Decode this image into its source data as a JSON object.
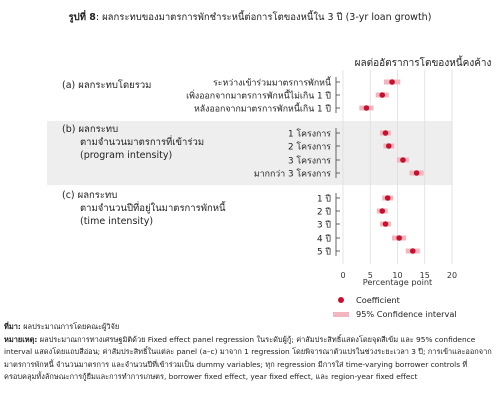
{
  "figure": {
    "number_label": "รูปที่ 8",
    "title": ": ผลกระทบของมาตรการพักชำระหนี้ต่อการโตของหนี้ใน 3 ปี (3-yr loan growth)"
  },
  "chart_data": {
    "type": "scatter",
    "title": "ผลต่ออัตราการโตของหนี้คงค้าง",
    "xlabel": "Percentage point",
    "xlim": [
      0,
      20
    ],
    "xticks": [
      0,
      5,
      10,
      15,
      20
    ],
    "grid": true,
    "legend_position": "bottom-right",
    "panels": [
      {
        "label": "(a)  ผลกระทบโดยรวม",
        "label_lines": [
          "(a)  ผลกระทบโดยรวม"
        ],
        "shaded": false,
        "rows": [
          {
            "label": "ระหว่างเข้าร่วมมาตรการพักหนี้",
            "coef": 9.0,
            "ci": [
              7.5,
              10.5
            ]
          },
          {
            "label": "เพิ่งออกจากมาตรการพักหนี้ไม่เกิน 1 ปี",
            "coef": 7.2,
            "ci": [
              6.0,
              8.4
            ]
          },
          {
            "label": "หลังออกจากมาตรการพักหนี้เกิน 1 ปี",
            "coef": 4.3,
            "ci": [
              3.0,
              5.6
            ]
          }
        ]
      },
      {
        "label": "(b)  ผลกระทบ ตามจำนวนมาตรการที่เข้าร่วม (program intensity)",
        "label_lines": [
          "(b)  ผลกระทบ",
          "ตามจำนวนมาตรการที่เข้าร่วม",
          "(program intensity)"
        ],
        "shaded": true,
        "rows": [
          {
            "label": "1 โครงการ",
            "coef": 7.8,
            "ci": [
              6.8,
              8.8
            ]
          },
          {
            "label": "2 โครงการ",
            "coef": 8.4,
            "ci": [
              7.4,
              9.4
            ]
          },
          {
            "label": "3 โครงการ",
            "coef": 11.0,
            "ci": [
              9.9,
              12.1
            ]
          },
          {
            "label": "มากกว่า 3 โครงการ",
            "coef": 13.5,
            "ci": [
              12.2,
              14.8
            ]
          }
        ]
      },
      {
        "label": "(c)  ผลกระทบ ตามจำนวนปีที่อยู่ในมาตรการพักหนี้ (time intensity)",
        "label_lines": [
          "(c)  ผลกระทบ",
          "ตามจำนวนปีที่อยู่ในมาตรการพักหนี้",
          "(time intensity)"
        ],
        "shaded": false,
        "rows": [
          {
            "label": "1 ปี",
            "coef": 8.2,
            "ci": [
              7.2,
              9.2
            ]
          },
          {
            "label": "2 ปี",
            "coef": 7.2,
            "ci": [
              6.2,
              8.2
            ]
          },
          {
            "label": "3 ปี",
            "coef": 7.8,
            "ci": [
              6.8,
              8.8
            ]
          },
          {
            "label": "4 ปี",
            "coef": 10.3,
            "ci": [
              9.0,
              11.6
            ]
          },
          {
            "label": "5 ปี",
            "coef": 12.8,
            "ci": [
              11.5,
              14.1
            ]
          }
        ]
      }
    ],
    "legend": [
      {
        "name": "Coefficient",
        "marker": "dot"
      },
      {
        "name": "95% Confidence interval",
        "marker": "band"
      }
    ],
    "colors": {
      "coef": "#c8102e",
      "ci": "#f2b7be",
      "shade": "#eeeeee"
    }
  },
  "notes": {
    "source_label": "ที่มา:",
    "source_text": " ผลประมาณการโดยคณะผู้วิจัย",
    "remark_label": "หมายเหตุ:",
    "remark_text": " ผลประมาณการทางเศรษฐมิติด้วย Fixed effect panel regression ในระดับผู้กู้; ค่าสัมประสิทธิ์แสดงโดยจุดสีเข้ม และ 95% confidence interval แสดงโดยแถบสีอ่อน; ค่าสัมประสิทธิ์ในแต่ละ panel (a–c) มาจาก 1 regression โดยพิจารณาตัวแปรในช่วงระยะเวลา 3 ปี; การเข้าและออกจากมาตรการพักหนี้ จำนวนมาตรการ และจำนวนปีที่เข้าร่วมเป็น dummy variables; ทุก regression มีการใส่ time-varying borrower controls ที่ครอบคลุมทั้งลักษณะการกู้ยืมและการทำการเกษตร, borrower fixed effect, year fixed effect, และ region-year fixed effect"
  }
}
